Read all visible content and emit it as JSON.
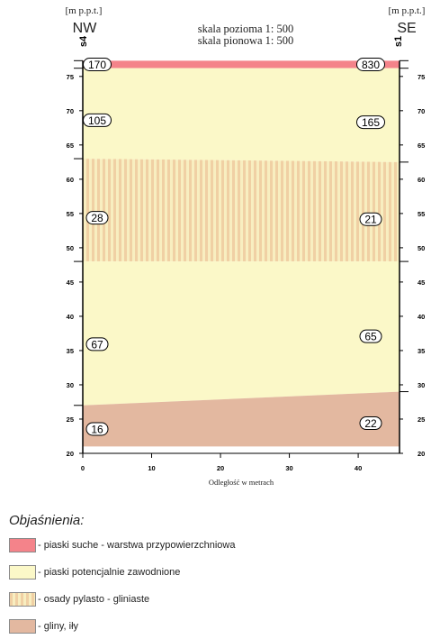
{
  "header": {
    "left_unit": "[m p.p.t.]",
    "right_unit": "[m p.p.t.]",
    "left_direction": "NW",
    "right_direction": "SE",
    "left_well": "s4",
    "right_well": "s1",
    "scale_horizontal": "skala pozioma 1: 500",
    "scale_vertical": "skala pionowa 1: 500"
  },
  "axes": {
    "x_label": "Odległość w metrach",
    "x_ticks": [
      0,
      10,
      20,
      30,
      40
    ],
    "x_range": [
      0,
      46
    ],
    "y_ticks": [
      20,
      25,
      30,
      35,
      40,
      45,
      50,
      55,
      60,
      65,
      70,
      75
    ],
    "y_range": [
      20,
      78
    ]
  },
  "chart_data": {
    "type": "geological-cross-section",
    "x_range": [
      0,
      46
    ],
    "y_range": [
      20,
      78
    ],
    "surface_elevation": 77.3,
    "layers": [
      {
        "key": "dry",
        "top_left": 77.3,
        "top_right": 77.3,
        "bottom_left": 76.2,
        "bottom_right": 76.2,
        "value_left": "170",
        "value_right": "830"
      },
      {
        "key": "sand",
        "top_left": 76.2,
        "top_right": 76.2,
        "bottom_left": 63.0,
        "bottom_right": 62.5,
        "value_left": "105",
        "value_right": "165"
      },
      {
        "key": "silt",
        "top_left": 63.0,
        "top_right": 62.5,
        "bottom_left": 48.0,
        "bottom_right": 48.0,
        "value_left": "28",
        "value_right": "21"
      },
      {
        "key": "sand",
        "top_left": 48.0,
        "top_right": 48.0,
        "bottom_left": 27.0,
        "bottom_right": 29.0,
        "value_left": "67",
        "value_right": "65"
      },
      {
        "key": "clay",
        "top_left": 27.0,
        "top_right": 29.0,
        "bottom_left": 21.0,
        "bottom_right": 21.0,
        "value_left": "16",
        "value_right": "22"
      }
    ]
  },
  "colors": {
    "dry": "#f4838a",
    "sand": "#fbf8c8",
    "silt_a": "#f0d0a4",
    "silt_b": "#f8eec0",
    "clay": "#e3b8a0"
  },
  "legend": {
    "title": "Objaśnienia:",
    "items": [
      {
        "key": "dry",
        "label": "- piaski suche - warstwa przypowierzchniowa"
      },
      {
        "key": "sand",
        "label": "- piaski potencjalnie zawodnione"
      },
      {
        "key": "silt",
        "label": "- osady pylasto - gliniaste"
      },
      {
        "key": "clay",
        "label": "- gliny, iły"
      }
    ]
  }
}
